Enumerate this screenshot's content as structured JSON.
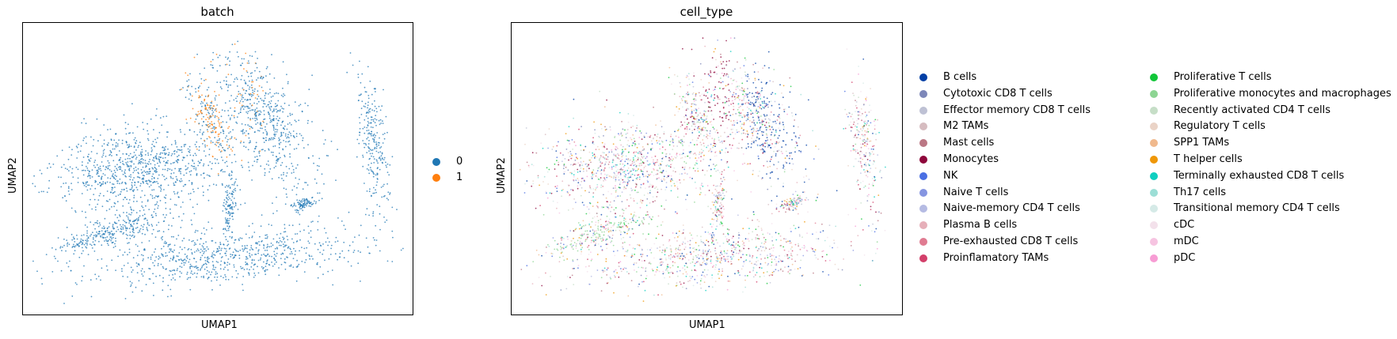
{
  "chart_data": [
    {
      "type": "scatter",
      "title": "batch",
      "xlabel": "UMAP1",
      "ylabel": "UMAP2",
      "grid": false,
      "legend_placement": "right",
      "legend": [
        {
          "label": "0",
          "color": "#1f77b4"
        },
        {
          "label": "1",
          "color": "#ff7f0e"
        }
      ]
    },
    {
      "type": "scatter",
      "title": "cell_type",
      "xlabel": "UMAP1",
      "ylabel": "UMAP2",
      "grid": false,
      "legend_placement": "right",
      "legend": [
        {
          "label": "B cells",
          "color": "#023fa5"
        },
        {
          "label": "Cytotoxic CD8 T cells",
          "color": "#7d87b9"
        },
        {
          "label": "Effector memory CD8 T cells",
          "color": "#bec1d4"
        },
        {
          "label": "M2 TAMs",
          "color": "#d6bcc0"
        },
        {
          "label": "Mast cells",
          "color": "#bb7784"
        },
        {
          "label": "Monocytes",
          "color": "#8e063b"
        },
        {
          "label": "NK",
          "color": "#4a6fe3"
        },
        {
          "label": "Naive T cells",
          "color": "#8595e1"
        },
        {
          "label": "Naive-memory CD4 T cells",
          "color": "#b5bbe3"
        },
        {
          "label": "Plasma B cells",
          "color": "#e6afb9"
        },
        {
          "label": "Pre-exhausted CD8 T cells",
          "color": "#e07b91"
        },
        {
          "label": "Proinflamatory TAMs",
          "color": "#d33f6a"
        },
        {
          "label": "Proliferative T cells",
          "color": "#11c638"
        },
        {
          "label": "Proliferative monocytes and macrophages",
          "color": "#8dd593"
        },
        {
          "label": "Recently activated CD4 T cells",
          "color": "#c6dec7"
        },
        {
          "label": "Regulatory T cells",
          "color": "#ead3c6"
        },
        {
          "label": "SPP1 TAMs",
          "color": "#f0b98d"
        },
        {
          "label": "T helper cells",
          "color": "#ef9708"
        },
        {
          "label": "Terminally exhausted CD8 T cells",
          "color": "#0fcfc0"
        },
        {
          "label": "Th17 cells",
          "color": "#9cded6"
        },
        {
          "label": "Transitional memory CD4 T cells",
          "color": "#d5eae7"
        },
        {
          "label": "cDC",
          "color": "#f3e1eb"
        },
        {
          "label": "mDC",
          "color": "#f6c4e1"
        },
        {
          "label": "pDC",
          "color": "#f79cd4"
        }
      ]
    }
  ]
}
